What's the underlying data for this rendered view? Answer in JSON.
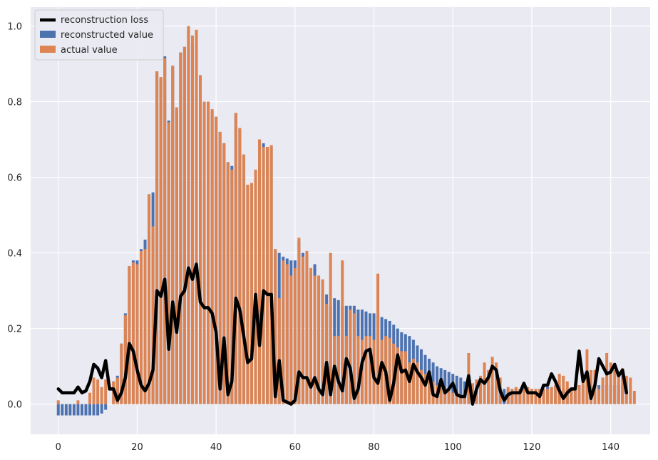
{
  "chart_data": {
    "type": "bar",
    "xlim": [
      -7,
      150
    ],
    "ylim": [
      -0.08,
      1.05
    ],
    "xticks": [
      0,
      20,
      40,
      60,
      80,
      100,
      120,
      140
    ],
    "xtick_labels": [
      "0",
      "20",
      "40",
      "60",
      "80",
      "100",
      "120",
      "140"
    ],
    "yticks": [
      0.0,
      0.2,
      0.4,
      0.6,
      0.8,
      1.0
    ],
    "ytick_labels": [
      "0.0",
      "0.2",
      "0.4",
      "0.6",
      "0.8",
      "1.0"
    ],
    "grid": true,
    "legend_position": "top-left",
    "background": "#eaeaf2",
    "series": [
      {
        "name": "reconstruction loss",
        "kind": "line",
        "color": "#000000",
        "values": [
          0.04,
          0.03,
          0.03,
          0.03,
          0.03,
          0.045,
          0.03,
          0.035,
          0.06,
          0.105,
          0.095,
          0.07,
          0.115,
          0.04,
          0.04,
          0.01,
          0.03,
          0.07,
          0.16,
          0.14,
          0.09,
          0.05,
          0.035,
          0.055,
          0.09,
          0.3,
          0.285,
          0.33,
          0.145,
          0.27,
          0.19,
          0.285,
          0.3,
          0.36,
          0.33,
          0.37,
          0.27,
          0.255,
          0.255,
          0.24,
          0.19,
          0.04,
          0.175,
          0.025,
          0.06,
          0.28,
          0.25,
          0.18,
          0.11,
          0.12,
          0.29,
          0.155,
          0.3,
          0.29,
          0.29,
          0.02,
          0.115,
          0.01,
          0.005,
          0.0,
          0.01,
          0.085,
          0.07,
          0.07,
          0.045,
          0.07,
          0.04,
          0.025,
          0.11,
          0.025,
          0.1,
          0.06,
          0.035,
          0.12,
          0.095,
          0.015,
          0.04,
          0.11,
          0.14,
          0.145,
          0.07,
          0.055,
          0.11,
          0.085,
          0.01,
          0.055,
          0.13,
          0.085,
          0.09,
          0.06,
          0.105,
          0.085,
          0.07,
          0.05,
          0.085,
          0.025,
          0.02,
          0.065,
          0.03,
          0.04,
          0.055,
          0.025,
          0.02,
          0.02,
          0.075,
          0.0,
          0.04,
          0.065,
          0.055,
          0.07,
          0.1,
          0.09,
          0.035,
          0.01,
          0.025,
          0.03,
          0.03,
          0.03,
          0.055,
          0.03,
          0.03,
          0.03,
          0.02,
          0.05,
          0.05,
          0.08,
          0.06,
          0.035,
          0.015,
          0.03,
          0.04,
          0.04,
          0.14,
          0.06,
          0.085,
          0.015,
          0.05,
          0.12,
          0.1,
          0.08,
          0.085,
          0.105,
          0.075,
          0.09,
          0.03
        ]
      },
      {
        "name": "reconstructed value",
        "kind": "bar",
        "color": "#4c72b0",
        "values": [
          -0.03,
          -0.03,
          -0.03,
          -0.03,
          -0.03,
          -0.03,
          -0.03,
          -0.03,
          -0.03,
          -0.03,
          -0.03,
          -0.025,
          -0.015,
          0.0,
          0.06,
          0.075,
          0.16,
          0.24,
          0.365,
          0.38,
          0.38,
          0.41,
          0.435,
          0.555,
          0.56,
          0.88,
          0.86,
          0.92,
          0.75,
          0.895,
          0.78,
          0.93,
          0.945,
          0.99,
          0.95,
          0.985,
          0.87,
          0.8,
          0.8,
          0.775,
          0.76,
          0.72,
          0.69,
          0.64,
          0.63,
          0.77,
          0.73,
          0.66,
          0.58,
          0.58,
          0.62,
          0.7,
          0.69,
          0.68,
          0.68,
          0.41,
          0.4,
          0.39,
          0.385,
          0.38,
          0.38,
          0.43,
          0.4,
          0.39,
          0.35,
          0.37,
          0.33,
          0.3,
          0.29,
          0.26,
          0.28,
          0.275,
          0.26,
          0.26,
          0.26,
          0.26,
          0.25,
          0.25,
          0.245,
          0.24,
          0.24,
          0.235,
          0.23,
          0.225,
          0.22,
          0.21,
          0.2,
          0.19,
          0.185,
          0.18,
          0.17,
          0.155,
          0.145,
          0.13,
          0.12,
          0.11,
          0.1,
          0.095,
          0.09,
          0.085,
          0.08,
          0.075,
          0.07,
          0.06,
          0.06,
          0.055,
          0.05,
          0.05,
          0.05,
          0.045,
          0.05,
          0.05,
          0.045,
          0.04,
          0.035,
          0.04,
          0.04,
          0.04,
          0.045,
          0.04,
          0.04,
          0.04,
          0.04,
          0.04,
          0.045,
          0.045,
          0.05,
          0.05,
          0.04,
          0.04,
          0.04,
          0.045,
          0.05,
          0.05,
          0.05,
          0.05,
          0.05,
          0.05,
          0.05,
          0.05,
          0.05,
          0.05,
          0.05,
          0.05
        ]
      },
      {
        "name": "actual value",
        "kind": "bar",
        "color": "#dd8452",
        "values": [
          0.01,
          0.0,
          0.0,
          0.0,
          0.0,
          0.01,
          0.0,
          0.0,
          0.03,
          0.07,
          0.065,
          0.045,
          0.065,
          0.0,
          0.06,
          0.07,
          0.16,
          0.235,
          0.365,
          0.375,
          0.37,
          0.405,
          0.41,
          0.555,
          0.47,
          0.88,
          0.865,
          0.915,
          0.745,
          0.895,
          0.785,
          0.93,
          0.945,
          1.0,
          0.975,
          0.99,
          0.87,
          0.8,
          0.8,
          0.78,
          0.76,
          0.72,
          0.69,
          0.64,
          0.62,
          0.77,
          0.73,
          0.66,
          0.58,
          0.585,
          0.62,
          0.7,
          0.68,
          0.68,
          0.685,
          0.41,
          0.28,
          0.38,
          0.37,
          0.34,
          0.36,
          0.44,
          0.39,
          0.405,
          0.36,
          0.34,
          0.34,
          0.33,
          0.265,
          0.4,
          0.18,
          0.18,
          0.38,
          0.18,
          0.25,
          0.24,
          0.18,
          0.17,
          0.18,
          0.18,
          0.17,
          0.345,
          0.17,
          0.18,
          0.175,
          0.16,
          0.15,
          0.14,
          0.14,
          0.11,
          0.12,
          0.11,
          0.09,
          0.08,
          0.07,
          0.06,
          0.05,
          0.05,
          0.04,
          0.035,
          0.03,
          0.03,
          0.02,
          0.02,
          0.135,
          0.055,
          0.065,
          0.075,
          0.11,
          0.09,
          0.125,
          0.11,
          0.07,
          0.0,
          0.045,
          0.04,
          0.045,
          0.04,
          0.04,
          0.045,
          0.04,
          0.04,
          0.04,
          0.04,
          0.04,
          0.045,
          0.05,
          0.08,
          0.075,
          0.06,
          0.035,
          0.045,
          0.05,
          0.06,
          0.145,
          0.09,
          0.09,
          0.04,
          0.07,
          0.135,
          0.11,
          0.09,
          0.085,
          0.095,
          0.075,
          0.07,
          0.035
        ]
      }
    ]
  },
  "legend": {
    "items": [
      {
        "label": "reconstruction loss",
        "kind": "line",
        "color": "#000000"
      },
      {
        "label": "reconstructed value",
        "kind": "bar",
        "color": "#4c72b0"
      },
      {
        "label": "actual value",
        "kind": "bar",
        "color": "#dd8452"
      }
    ]
  }
}
